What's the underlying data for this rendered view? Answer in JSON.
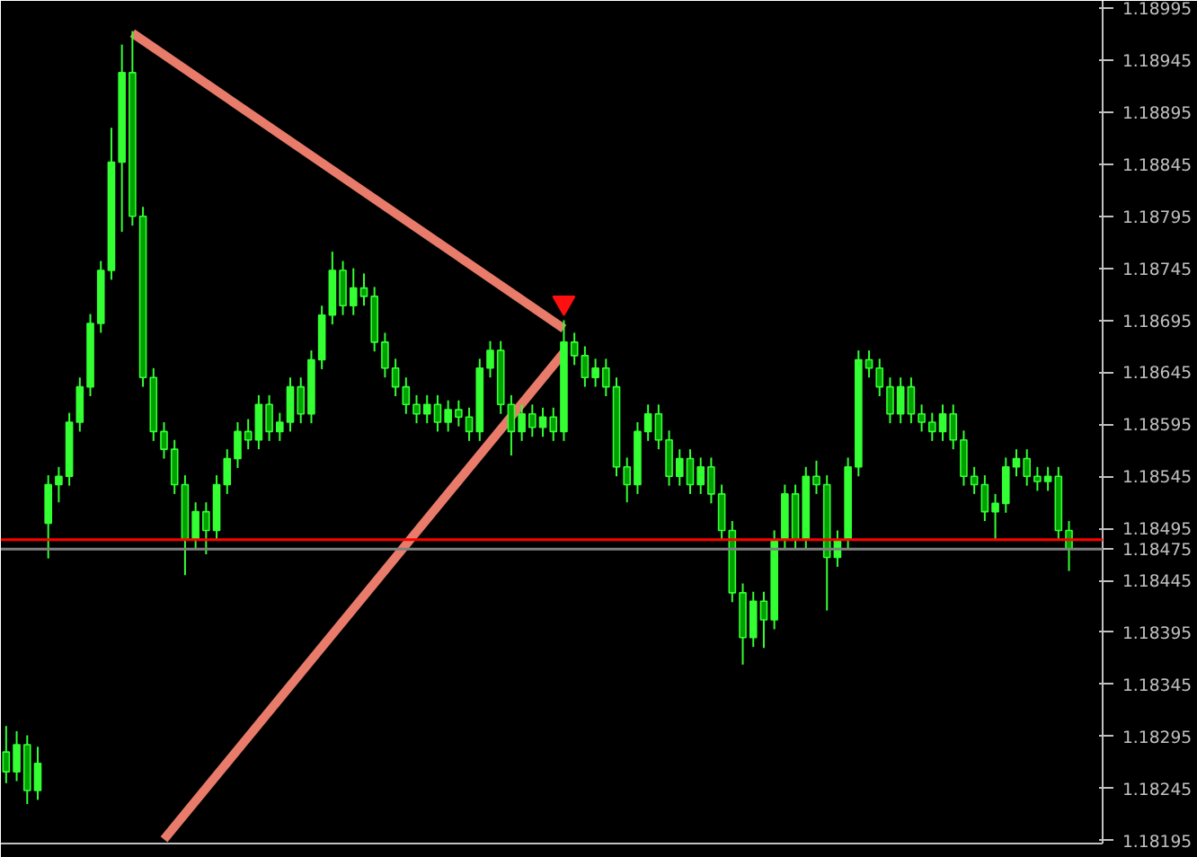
{
  "chart_data": {
    "type": "candlestick",
    "categories": [
      null,
      null,
      null,
      null,
      null,
      null,
      null,
      null,
      null,
      null,
      null,
      null,
      null,
      null,
      null,
      null,
      null,
      null,
      null,
      null,
      null,
      null,
      null,
      null,
      null,
      null,
      null,
      null,
      null,
      null,
      null,
      null,
      null,
      null,
      null,
      null,
      null,
      null,
      null,
      null,
      null,
      null,
      null,
      null,
      null,
      null,
      null,
      null,
      null,
      null,
      null,
      null,
      null,
      null,
      null,
      null,
      null,
      null,
      null,
      null,
      null,
      null,
      null,
      null,
      null,
      null,
      null,
      null,
      null,
      null,
      null,
      null,
      null,
      null,
      null,
      null,
      null,
      null,
      null,
      null,
      null,
      null,
      null,
      null,
      null,
      null,
      null,
      null,
      null,
      null,
      null,
      null,
      null,
      null,
      null,
      null,
      null,
      null,
      null,
      null,
      null,
      null
    ],
    "color": "#33ff33",
    "ohlc": [
      [
        1.1828,
        1.18305,
        1.1825,
        1.18261
      ],
      [
        1.18261,
        1.183,
        1.18252,
        1.18287
      ],
      [
        1.18287,
        1.18296,
        1.1823,
        1.18243
      ],
      [
        1.18243,
        1.18285,
        1.18234,
        1.18269
      ],
      [
        1.185,
        1.18546,
        1.18466,
        1.18537
      ],
      [
        1.18537,
        1.18554,
        1.1852,
        1.18545
      ],
      [
        1.18545,
        1.18606,
        1.18536,
        1.18597
      ],
      [
        1.18597,
        1.1864,
        1.18588,
        1.18631
      ],
      [
        1.18631,
        1.18701,
        1.18622,
        1.18692
      ],
      [
        1.18692,
        1.18752,
        1.18683,
        1.18743
      ],
      [
        1.18743,
        1.1888,
        1.18734,
        1.18847
      ],
      [
        1.18847,
        1.1896,
        1.1878,
        1.18933
      ],
      [
        1.18933,
        1.18973,
        1.18786,
        1.18795
      ],
      [
        1.18795,
        1.18804,
        1.18631,
        1.1864
      ],
      [
        1.1864,
        1.18649,
        1.18579,
        1.18588
      ],
      [
        1.18588,
        1.18597,
        1.18562,
        1.18571
      ],
      [
        1.18571,
        1.1858,
        1.18528,
        1.18537
      ],
      [
        1.18537,
        1.18546,
        1.1845,
        1.18484
      ],
      [
        1.18484,
        1.1852,
        1.18475,
        1.18511
      ],
      [
        1.18511,
        1.1852,
        1.1847,
        1.18493
      ],
      [
        1.18493,
        1.18546,
        1.18484,
        1.18537
      ],
      [
        1.18537,
        1.18571,
        1.18528,
        1.18562
      ],
      [
        1.18562,
        1.18597,
        1.18553,
        1.18588
      ],
      [
        1.18588,
        1.186,
        1.18571,
        1.1858
      ],
      [
        1.1858,
        1.18623,
        1.18571,
        1.18614
      ],
      [
        1.18614,
        1.18623,
        1.18579,
        1.18588
      ],
      [
        1.18588,
        1.18606,
        1.18579,
        1.18597
      ],
      [
        1.18597,
        1.1864,
        1.18588,
        1.18631
      ],
      [
        1.18631,
        1.1864,
        1.18596,
        1.18605
      ],
      [
        1.18605,
        1.18666,
        1.18596,
        1.18657
      ],
      [
        1.18657,
        1.18709,
        1.18648,
        1.187
      ],
      [
        1.187,
        1.18761,
        1.18691,
        1.18743
      ],
      [
        1.18743,
        1.18752,
        1.187,
        1.18709
      ],
      [
        1.18709,
        1.18745,
        1.187,
        1.18726
      ],
      [
        1.18726,
        1.1874,
        1.18709,
        1.18718
      ],
      [
        1.18718,
        1.18727,
        1.18665,
        1.18674
      ],
      [
        1.18674,
        1.18683,
        1.1864,
        1.18649
      ],
      [
        1.18649,
        1.18658,
        1.18622,
        1.18631
      ],
      [
        1.18631,
        1.1864,
        1.18605,
        1.18614
      ],
      [
        1.18614,
        1.18623,
        1.18596,
        1.18605
      ],
      [
        1.18605,
        1.18623,
        1.18596,
        1.18614
      ],
      [
        1.18614,
        1.18623,
        1.18588,
        1.18597
      ],
      [
        1.18597,
        1.18618,
        1.18588,
        1.18609
      ],
      [
        1.18609,
        1.18618,
        1.18593,
        1.18602
      ],
      [
        1.18602,
        1.18611,
        1.18579,
        1.18588
      ],
      [
        1.18588,
        1.18658,
        1.18579,
        1.18649
      ],
      [
        1.18649,
        1.18675,
        1.1864,
        1.18666
      ],
      [
        1.18666,
        1.18675,
        1.18605,
        1.18614
      ],
      [
        1.18614,
        1.18623,
        1.18565,
        1.18588
      ],
      [
        1.18588,
        1.18614,
        1.18579,
        1.18605
      ],
      [
        1.18605,
        1.18614,
        1.18583,
        1.18592
      ],
      [
        1.18592,
        1.18611,
        1.18583,
        1.18602
      ],
      [
        1.18602,
        1.18611,
        1.18579,
        1.18588
      ],
      [
        1.18588,
        1.18695,
        1.18579,
        1.18674
      ],
      [
        1.18674,
        1.18683,
        1.18652,
        1.18661
      ],
      [
        1.18661,
        1.1867,
        1.18631,
        1.1864
      ],
      [
        1.1864,
        1.18658,
        1.18631,
        1.18649
      ],
      [
        1.18649,
        1.18658,
        1.18622,
        1.18631
      ],
      [
        1.18631,
        1.1864,
        1.18545,
        1.18554
      ],
      [
        1.18554,
        1.18563,
        1.1852,
        1.18537
      ],
      [
        1.18537,
        1.18597,
        1.18528,
        1.18588
      ],
      [
        1.18588,
        1.18614,
        1.18579,
        1.18605
      ],
      [
        1.18605,
        1.18614,
        1.18571,
        1.1858
      ],
      [
        1.1858,
        1.18589,
        1.18536,
        1.18545
      ],
      [
        1.18545,
        1.18571,
        1.18536,
        1.18562
      ],
      [
        1.18562,
        1.18571,
        1.18528,
        1.18537
      ],
      [
        1.18537,
        1.18563,
        1.18528,
        1.18554
      ],
      [
        1.18554,
        1.18563,
        1.18519,
        1.18528
      ],
      [
        1.18528,
        1.18537,
        1.18484,
        1.18493
      ],
      [
        1.18493,
        1.18502,
        1.18424,
        1.18433
      ],
      [
        1.18433,
        1.18442,
        1.18364,
        1.1839
      ],
      [
        1.1839,
        1.18434,
        1.18381,
        1.18425
      ],
      [
        1.18425,
        1.18434,
        1.1838,
        1.18407
      ],
      [
        1.18407,
        1.18493,
        1.18398,
        1.18484
      ],
      [
        1.18484,
        1.18537,
        1.18475,
        1.18528
      ],
      [
        1.18528,
        1.18537,
        1.18475,
        1.18484
      ],
      [
        1.18484,
        1.18554,
        1.18475,
        1.18545
      ],
      [
        1.18545,
        1.1856,
        1.18528,
        1.18537
      ],
      [
        1.18537,
        1.18546,
        1.18416,
        1.18467
      ],
      [
        1.18467,
        1.18493,
        1.18458,
        1.18484
      ],
      [
        1.18484,
        1.18563,
        1.18475,
        1.18554
      ],
      [
        1.18554,
        1.18666,
        1.18545,
        1.18657
      ],
      [
        1.18657,
        1.18666,
        1.1864,
        1.18649
      ],
      [
        1.18649,
        1.18658,
        1.18622,
        1.18631
      ],
      [
        1.18631,
        1.1864,
        1.18596,
        1.18605
      ],
      [
        1.18605,
        1.1864,
        1.18596,
        1.18631
      ],
      [
        1.18631,
        1.1864,
        1.18596,
        1.18605
      ],
      [
        1.18605,
        1.18614,
        1.18588,
        1.18597
      ],
      [
        1.18597,
        1.18606,
        1.18579,
        1.18588
      ],
      [
        1.18588,
        1.18614,
        1.18579,
        1.18605
      ],
      [
        1.18605,
        1.18614,
        1.18571,
        1.1858
      ],
      [
        1.1858,
        1.18589,
        1.18536,
        1.18545
      ],
      [
        1.18545,
        1.18554,
        1.18528,
        1.18537
      ],
      [
        1.18537,
        1.18546,
        1.18502,
        1.18511
      ],
      [
        1.18511,
        1.18528,
        1.18484,
        1.18519
      ],
      [
        1.18519,
        1.18563,
        1.1851,
        1.18554
      ],
      [
        1.18554,
        1.18571,
        1.18545,
        1.18562
      ],
      [
        1.18562,
        1.18571,
        1.18536,
        1.18545
      ],
      [
        1.18545,
        1.18554,
        1.18531,
        1.1854
      ],
      [
        1.1854,
        1.18554,
        1.18531,
        1.18545
      ],
      [
        1.18545,
        1.18554,
        1.18484,
        1.18493
      ],
      [
        1.18493,
        1.18502,
        1.18454,
        1.18475
      ]
    ],
    "series": [
      {
        "type": "line",
        "color": "#f4826f",
        "values": [
          null,
          null,
          null,
          null,
          null,
          null,
          null,
          null,
          null,
          null,
          null,
          null,
          1.18971,
          null,
          null,
          null,
          null,
          null,
          null,
          null,
          null,
          null,
          null,
          null,
          null,
          null,
          null,
          null,
          null,
          null,
          null,
          null,
          null,
          null,
          null,
          null,
          null,
          null,
          null,
          null,
          null,
          null,
          null,
          null,
          null,
          null,
          null,
          null,
          null,
          null,
          null,
          null,
          null,
          1.18687,
          null,
          null,
          null,
          null,
          null,
          null,
          null,
          null,
          null,
          null,
          null,
          null,
          null,
          null,
          null,
          null,
          null,
          null,
          null,
          null,
          null,
          null,
          null,
          null,
          null,
          null,
          null,
          null,
          null,
          null,
          null,
          null,
          null,
          null,
          null,
          null,
          null,
          null,
          null,
          null,
          null,
          null,
          null,
          null,
          null,
          null,
          null,
          null
        ]
      },
      {
        "type": "scatter",
        "color": "#ff1010",
        "values": [
          null,
          null,
          null,
          null,
          null,
          null,
          null,
          null,
          null,
          null,
          null,
          null,
          null,
          null,
          null,
          null,
          null,
          null,
          null,
          null,
          null,
          null,
          null,
          null,
          null,
          null,
          null,
          null,
          null,
          null,
          null,
          null,
          null,
          null,
          null,
          null,
          null,
          null,
          null,
          null,
          null,
          null,
          null,
          null,
          null,
          null,
          null,
          null,
          null,
          null,
          null,
          null,
          null,
          1.18712,
          null,
          null,
          null,
          null,
          null,
          null,
          null,
          null,
          null,
          null,
          null,
          null,
          null,
          null,
          null,
          null,
          null,
          null,
          null,
          null,
          null,
          null,
          null,
          null,
          null,
          null,
          null,
          null,
          null,
          null,
          null,
          null,
          null,
          null,
          null,
          null,
          null,
          null,
          null,
          null,
          null,
          null,
          null,
          null,
          null,
          null,
          null,
          null
        ]
      },
      {
        "type": "line",
        "color": "#f4826f",
        "values": [
          null,
          null,
          null,
          null,
          null,
          null,
          null,
          null,
          null,
          null,
          null,
          null,
          null,
          null,
          null,
          1.18196,
          null,
          null,
          null,
          null,
          null,
          null,
          null,
          null,
          null,
          null,
          null,
          null,
          null,
          null,
          null,
          null,
          null,
          null,
          null,
          null,
          null,
          null,
          null,
          null,
          null,
          null,
          null,
          null,
          null,
          null,
          null,
          null,
          null,
          null,
          null,
          null,
          null,
          1.18664,
          null,
          null,
          null,
          null,
          null,
          null,
          null,
          null,
          null,
          null,
          null,
          null,
          null,
          null,
          null,
          null,
          null,
          null,
          null,
          null,
          null,
          null,
          null,
          null,
          null,
          null,
          null,
          null,
          null,
          null,
          null,
          null,
          null,
          null,
          null,
          null,
          null,
          null,
          null,
          null,
          null,
          null,
          null,
          null,
          null,
          null,
          null,
          null
        ]
      }
    ],
    "ylim": [
      1.18192,
      1.19002
    ],
    "yticks": [
      1.18995,
      1.18945,
      1.18895,
      1.18845,
      1.18795,
      1.18745,
      1.18695,
      1.18645,
      1.18595,
      1.18545,
      1.18495,
      1.18445,
      1.18395,
      1.18345,
      1.18295,
      1.18245,
      1.18195
    ],
    "ref_lines": [
      {
        "axis": "y",
        "value": 1.18484,
        "label": null,
        "color": "#ff0000"
      },
      {
        "axis": "y",
        "value": 1.18475,
        "label": "1.18475",
        "color": "#808080"
      }
    ],
    "tick_labels": "y",
    "grid": false
  }
}
